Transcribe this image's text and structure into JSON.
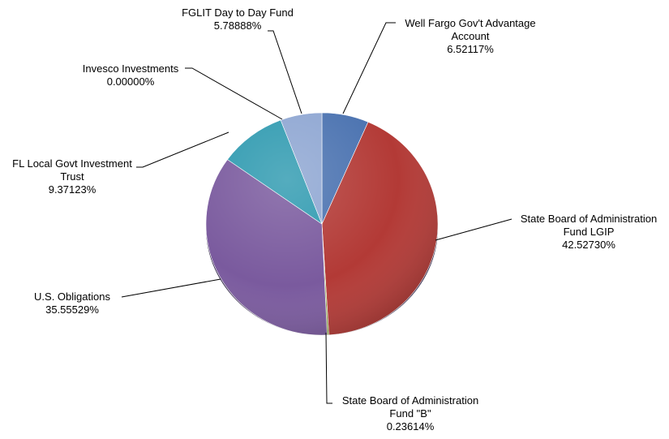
{
  "chart_data": {
    "type": "pie",
    "title": "",
    "slices": [
      {
        "lines": [
          "Well Fargo Gov't Advantage",
          "Account"
        ],
        "pct_label": "6.52117%",
        "value": 6.52117,
        "color": "#4a72b0"
      },
      {
        "lines": [
          "State Board of Administration",
          "Fund LGIP"
        ],
        "pct_label": "42.52730%",
        "value": 42.5273,
        "color": "#b33a36"
      },
      {
        "lines": [
          "State Board of Administration",
          "Fund \"B\""
        ],
        "pct_label": "0.23614%",
        "value": 0.23614,
        "color": "#8aa23e"
      },
      {
        "lines": [
          "U.S. Obligations"
        ],
        "pct_label": "35.55529%",
        "value": 35.55529,
        "color": "#7a5a9e"
      },
      {
        "lines": [
          "FL Local Govt Investment",
          "Trust"
        ],
        "pct_label": "9.37123%",
        "value": 9.37123,
        "color": "#2f9ab0"
      },
      {
        "lines": [
          "Invesco Investments"
        ],
        "pct_label": "0.00000%",
        "value": 0.0,
        "color": "#e08a2e"
      },
      {
        "lines": [
          "FGLIT Day to Day Fund"
        ],
        "pct_label": "5.78888%",
        "value": 5.78888,
        "color": "#8ea6d2"
      }
    ]
  }
}
